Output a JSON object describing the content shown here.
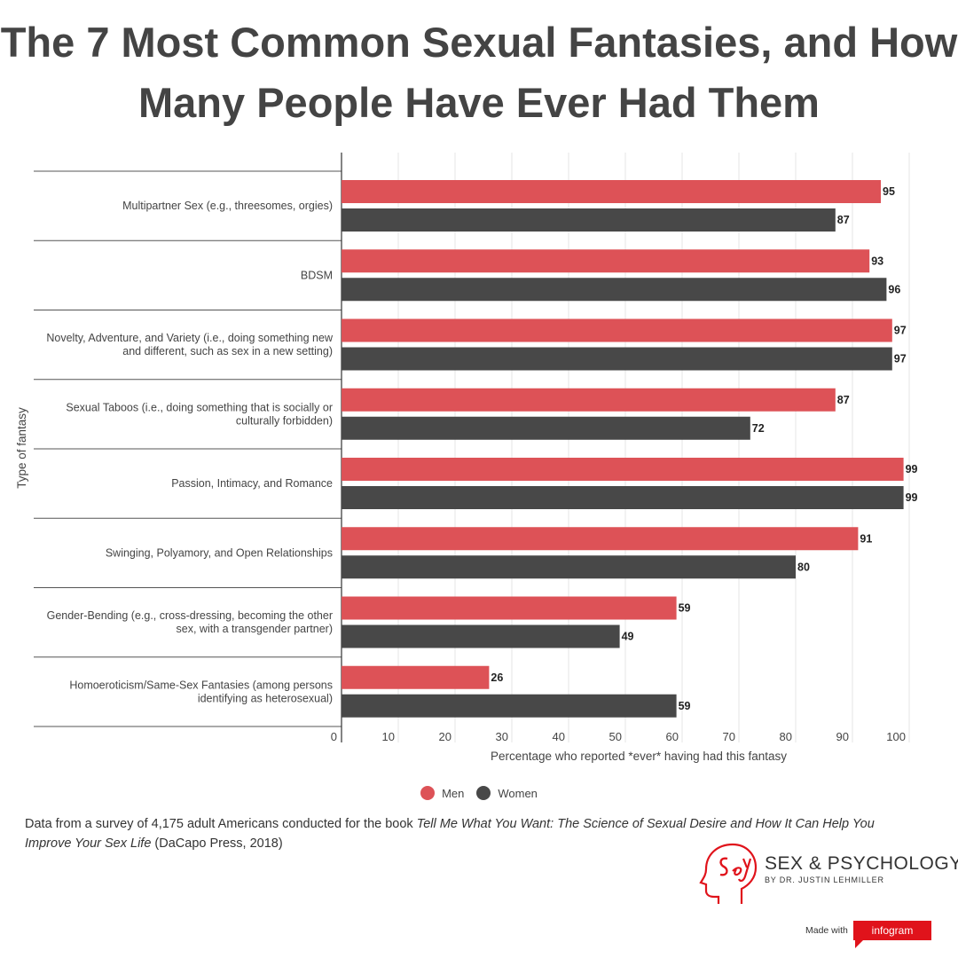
{
  "title_lines": [
    "The 7 Most Common Sexual Fantasies, and How",
    "Many People Have Ever Had Them"
  ],
  "colors": {
    "men": "#dd5257",
    "women": "#484848"
  },
  "legend": {
    "men_label": "Men",
    "women_label": "Women"
  },
  "chart_data": {
    "type": "bar",
    "orientation": "horizontal",
    "categories": [
      [
        "Multipartner Sex (e.g., threesomes, orgies)"
      ],
      [
        "BDSM"
      ],
      [
        "Novelty, Adventure, and Variety (i.e., doing something new",
        "and different, such as sex in a new setting)"
      ],
      [
        "Sexual Taboos (i.e., doing something that is socially or",
        "culturally forbidden)"
      ],
      [
        "Passion, Intimacy, and Romance"
      ],
      [
        "Swinging, Polyamory, and Open Relationships"
      ],
      [
        "Gender-Bending (e.g., cross-dressing, becoming the other",
        "sex, with a transgender partner)"
      ],
      [
        "Homoeroticism/Same-Sex Fantasies (among persons",
        "identifying as heterosexual)"
      ]
    ],
    "series": [
      {
        "name": "Men",
        "values": [
          95,
          93,
          97,
          87,
          99,
          91,
          59,
          26
        ]
      },
      {
        "name": "Women",
        "values": [
          87,
          96,
          97,
          72,
          99,
          80,
          49,
          59
        ]
      }
    ],
    "xlabel": "Percentage who reported *ever* having had this fantasy",
    "ylabel": "Type of fantasy",
    "xlim": [
      0,
      100
    ],
    "xticks": [
      0,
      10,
      20,
      30,
      40,
      50,
      60,
      70,
      80,
      90,
      100
    ],
    "grid": true,
    "legend_position": "bottom"
  },
  "source": {
    "prefix": "Data from a survey of 4,175 adult Americans conducted for the book ",
    "book_title": "Tell Me What You Want: The Science of Sexual Desire and How It Can Help You Improve Your Sex Life",
    "suffix": " (DaCapo Press, 2018)"
  },
  "brand": {
    "name": "SEX & PSYCHOLOGY",
    "subtitle": "BY DR. JUSTIN LEHMILLER"
  },
  "made_with": {
    "text": "Made with",
    "badge": "infogram"
  }
}
